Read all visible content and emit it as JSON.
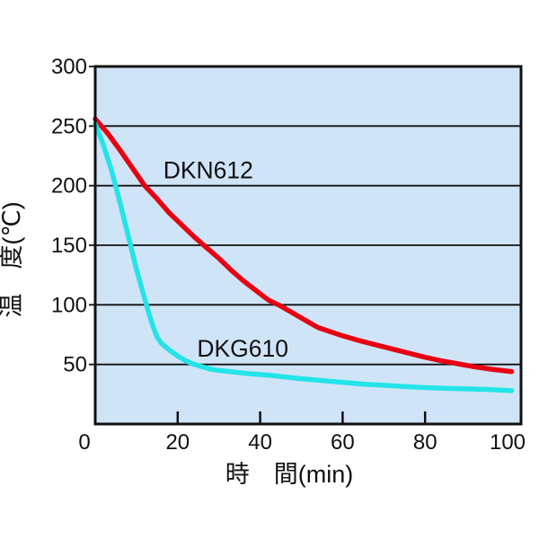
{
  "chart_data": {
    "type": "line",
    "title": "",
    "xlabel": "時　間(min)",
    "ylabel": "温　度(℃)",
    "xlim": [
      0,
      100
    ],
    "ylim": [
      0,
      300
    ],
    "x_ticks": [
      0,
      20,
      40,
      60,
      80,
      100
    ],
    "y_ticks": [
      50,
      100,
      150,
      200,
      250,
      300
    ],
    "grid": "horizontal",
    "legend_position": "inline-labels",
    "colors": {
      "plot_background": "#d0e4f8",
      "axis_line": "#111111",
      "dkn612_red": "#e60012",
      "dkg610_cyan": "#23e4e8"
    },
    "series": [
      {
        "name": "DKN612",
        "color": "#e60012",
        "label": {
          "text": "DKN612",
          "x": 16.5,
          "y": 206
        },
        "points": [
          [
            0,
            256
          ],
          [
            3,
            244
          ],
          [
            6,
            230
          ],
          [
            9,
            215
          ],
          [
            12,
            200
          ],
          [
            15,
            189
          ],
          [
            18,
            177
          ],
          [
            21,
            167
          ],
          [
            24,
            157
          ],
          [
            27,
            148
          ],
          [
            30,
            139
          ],
          [
            33,
            129
          ],
          [
            36,
            120
          ],
          [
            39,
            112
          ],
          [
            42,
            104
          ],
          [
            45,
            99
          ],
          [
            48,
            93
          ],
          [
            51,
            87
          ],
          [
            54,
            81
          ],
          [
            57,
            77.5
          ],
          [
            60,
            74
          ],
          [
            64,
            70
          ],
          [
            68,
            66.5
          ],
          [
            72,
            63
          ],
          [
            76,
            59.5
          ],
          [
            80,
            56
          ],
          [
            84,
            53
          ],
          [
            88,
            50.5
          ],
          [
            92,
            48
          ],
          [
            96,
            46
          ],
          [
            101,
            44
          ]
        ]
      },
      {
        "name": "DKG610",
        "color": "#23e4e8",
        "label": {
          "text": "DKG610",
          "x": 24.7,
          "y": 56.5
        },
        "points": [
          [
            0,
            252
          ],
          [
            2,
            234
          ],
          [
            4,
            212
          ],
          [
            6,
            186
          ],
          [
            8,
            158
          ],
          [
            10,
            130
          ],
          [
            12,
            105
          ],
          [
            13,
            93
          ],
          [
            14,
            82
          ],
          [
            15,
            73
          ],
          [
            16,
            68
          ],
          [
            17,
            65
          ],
          [
            18,
            62
          ],
          [
            20,
            57
          ],
          [
            22,
            53
          ],
          [
            24,
            50
          ],
          [
            26,
            48
          ],
          [
            28,
            46
          ],
          [
            30,
            45
          ],
          [
            34,
            43.5
          ],
          [
            38,
            42
          ],
          [
            42,
            41
          ],
          [
            46,
            39.5
          ],
          [
            50,
            38
          ],
          [
            55,
            36.5
          ],
          [
            60,
            35
          ],
          [
            65,
            33.5
          ],
          [
            70,
            32.5
          ],
          [
            75,
            31.5
          ],
          [
            80,
            30.5
          ],
          [
            85,
            30
          ],
          [
            90,
            29.5
          ],
          [
            95,
            29
          ],
          [
            101,
            28
          ]
        ]
      }
    ]
  }
}
